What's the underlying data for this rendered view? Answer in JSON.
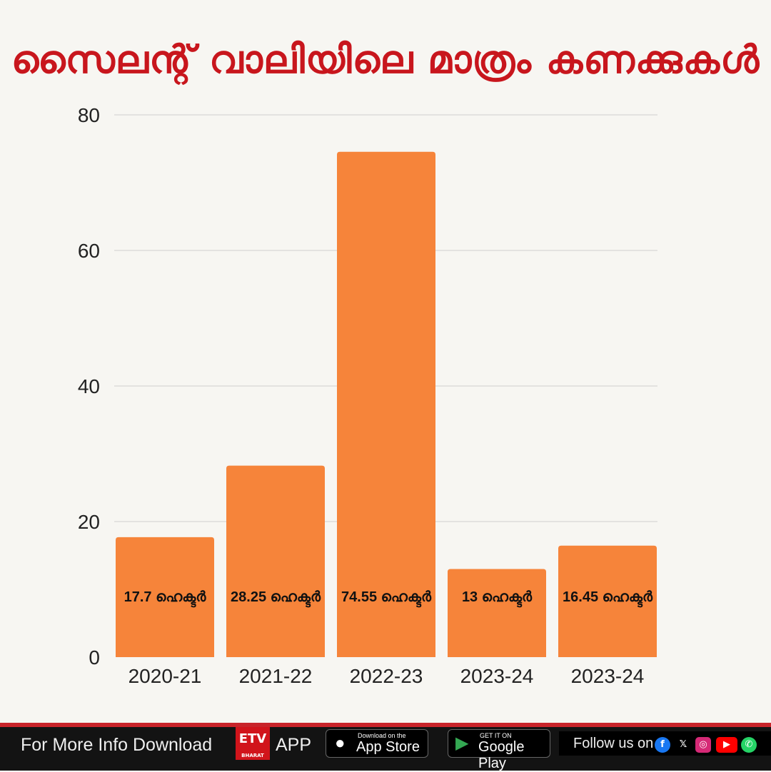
{
  "title": "സൈലന്റ് വാലിയിലെ മാത്രം കണക്കുകൾ",
  "chart_data": {
    "type": "bar",
    "title": "സൈലന്റ് വാലിയിലെ മാത്രം കണക്കുകൾ",
    "xlabel": "",
    "ylabel": "",
    "categories": [
      "2020-21",
      "2021-22",
      "2022-23",
      "2023-24",
      "2023-24"
    ],
    "values": [
      17.7,
      28.25,
      74.55,
      13,
      16.45
    ],
    "data_labels": [
      "17.7 ഹെക്ടർ",
      "28.25 ഹെക്ടർ",
      "74.55  ഹെക്ടർ",
      "13  ഹെക്ടർ",
      "16.45 ഹെക്ടർ"
    ],
    "ylim": [
      0,
      80
    ],
    "yticks": [
      "0",
      "20",
      "40",
      "60",
      "80"
    ],
    "grid": true,
    "bar_color": "#f6843a"
  },
  "footer": {
    "download_text": "For More Info Download",
    "app_text": "APP",
    "etv_logo": "ETV BHARAT",
    "app_store_small": "Download on the",
    "app_store_big": "App Store",
    "google_small": "GET IT ON",
    "google_big": "Google Play",
    "follow_text": "Follow us on",
    "social_icons": [
      "facebook-icon",
      "x-icon",
      "instagram-icon",
      "youtube-icon",
      "whatsapp-icon"
    ]
  }
}
